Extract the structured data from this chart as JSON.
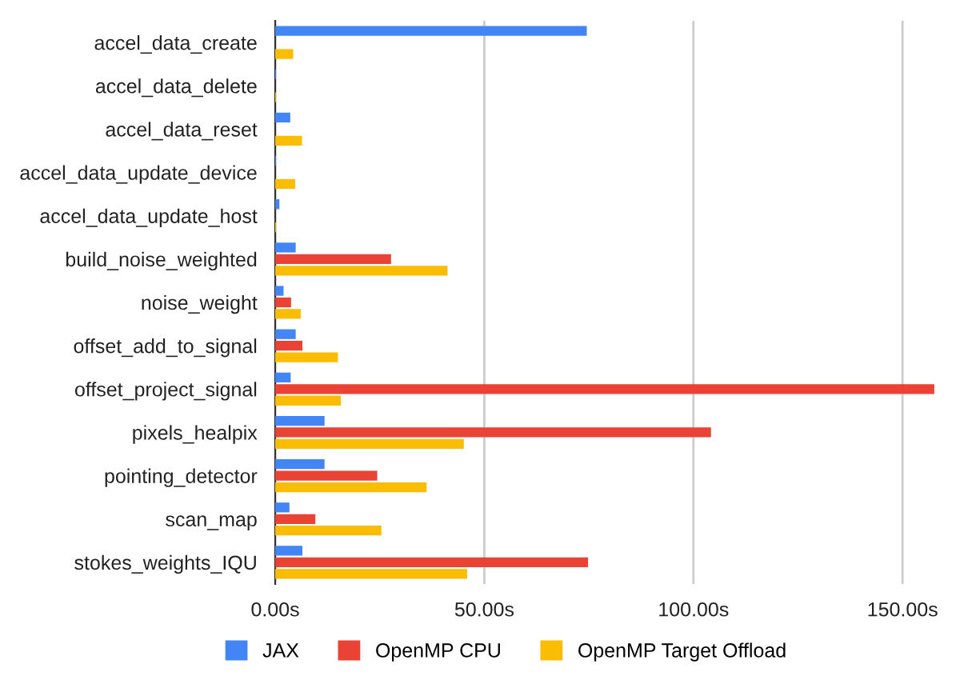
{
  "chart_data": {
    "type": "bar",
    "orientation": "horizontal",
    "categories": [
      "accel_data_create",
      "accel_data_delete",
      "accel_data_reset",
      "accel_data_update_device",
      "accel_data_update_host",
      "build_noise_weighted",
      "noise_weight",
      "offset_add_to_signal",
      "offset_project_signal",
      "pixels_healpix",
      "pointing_detector",
      "scan_map",
      "stokes_weights_IQU"
    ],
    "series": [
      {
        "name": "JAX",
        "color": "#4285f4",
        "values": [
          74.5,
          0.2,
          3.6,
          0.2,
          1.0,
          4.9,
          2.0,
          4.9,
          3.7,
          11.8,
          11.8,
          3.4,
          6.5
        ]
      },
      {
        "name": "OpenMP CPU",
        "color": "#ea4335",
        "values": [
          null,
          null,
          null,
          null,
          null,
          27.7,
          3.8,
          6.5,
          157.6,
          104.2,
          24.4,
          9.6,
          74.8
        ]
      },
      {
        "name": "OpenMP Target Offload",
        "color": "#fbbc04",
        "values": [
          4.3,
          0.2,
          6.4,
          4.8,
          0.2,
          41.2,
          6.1,
          15.0,
          15.7,
          45.1,
          36.2,
          25.4,
          45.9
        ]
      }
    ],
    "xlim": [
      0,
      158
    ],
    "xticks": [
      {
        "value": 0,
        "label": "0.00s"
      },
      {
        "value": 50,
        "label": "50.00s"
      },
      {
        "value": 100,
        "label": "100.00s"
      },
      {
        "value": 150,
        "label": "150.00s"
      }
    ],
    "grid": "x",
    "legend": "bottom"
  }
}
